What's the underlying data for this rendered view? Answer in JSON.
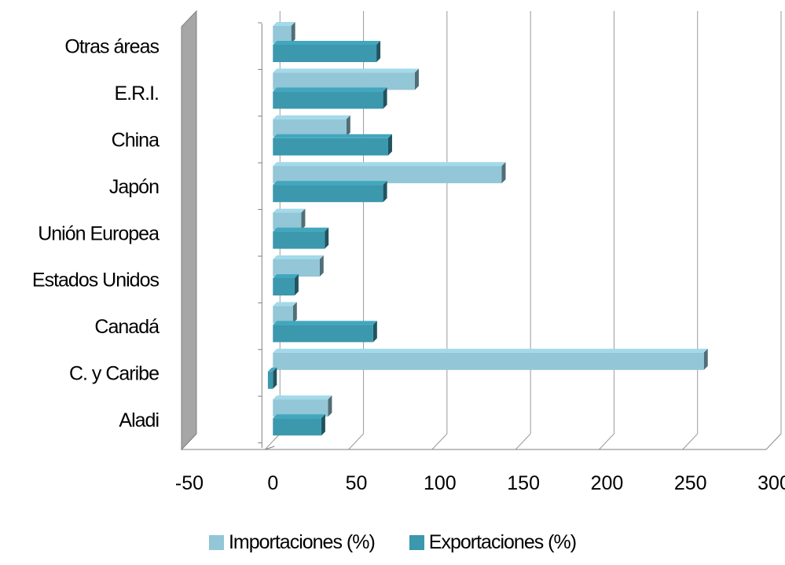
{
  "chart_data": {
    "type": "bar",
    "orientation": "horizontal",
    "style": "3d",
    "categories": [
      "Otras áreas",
      "E.R.I.",
      "China",
      "Japón",
      "Unión Europea",
      "Estados Unidos",
      "Canadá",
      "C. y Caribe",
      "Aladi"
    ],
    "series": [
      {
        "name": "Importaciones (%)",
        "color": "#93c6d6",
        "values": [
          11,
          85,
          44,
          137,
          17,
          28,
          12,
          258,
          33
        ]
      },
      {
        "name": "Exportaciones (%)",
        "color": "#3b98ad",
        "values": [
          62,
          66,
          69,
          66,
          31,
          13,
          60,
          -3,
          29
        ]
      }
    ],
    "xlim": [
      -50,
      300
    ],
    "xticks": [
      "-50",
      "0",
      "50",
      "100",
      "150",
      "200",
      "250",
      "300"
    ],
    "grid": true,
    "legend_position": "bottom",
    "title": "",
    "xlabel": "",
    "ylabel": ""
  }
}
